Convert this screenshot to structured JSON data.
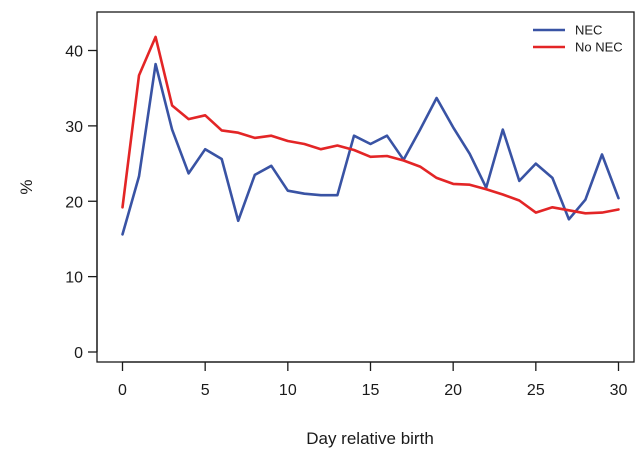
{
  "chart_data": {
    "type": "line",
    "title": "",
    "xlabel": "Day relative birth",
    "ylabel": "%",
    "xlim": [
      0,
      30
    ],
    "ylim": [
      0,
      42
    ],
    "x_ticks": [
      0,
      5,
      10,
      15,
      20,
      25,
      30
    ],
    "y_ticks": [
      0,
      10,
      20,
      30,
      40
    ],
    "grid": false,
    "legend_position": "top-right",
    "x": [
      0,
      1,
      2,
      3,
      4,
      5,
      6,
      7,
      8,
      9,
      10,
      11,
      12,
      13,
      14,
      15,
      16,
      17,
      18,
      19,
      20,
      21,
      22,
      23,
      24,
      25,
      26,
      27,
      28,
      29,
      30
    ],
    "series": [
      {
        "name": "NEC",
        "color": "#3953a4",
        "values": [
          15.6,
          23.3,
          38.2,
          29.5,
          23.7,
          26.9,
          25.6,
          17.4,
          23.5,
          24.7,
          21.4,
          21.0,
          20.8,
          20.8,
          28.7,
          27.6,
          28.7,
          25.5,
          29.5,
          33.7,
          29.8,
          26.3,
          21.8,
          29.5,
          22.7,
          25.0,
          23.1,
          17.6,
          20.2,
          26.2,
          20.4
        ]
      },
      {
        "name": "No NEC",
        "color": "#e32526",
        "values": [
          19.2,
          36.7,
          41.8,
          32.7,
          30.9,
          31.4,
          29.4,
          29.1,
          28.4,
          28.7,
          28.0,
          27.6,
          26.9,
          27.4,
          26.8,
          25.9,
          26.0,
          25.4,
          24.6,
          23.1,
          22.3,
          22.2,
          21.6,
          20.9,
          20.1,
          18.5,
          19.2,
          18.8,
          18.4,
          18.5,
          18.9
        ]
      }
    ]
  }
}
